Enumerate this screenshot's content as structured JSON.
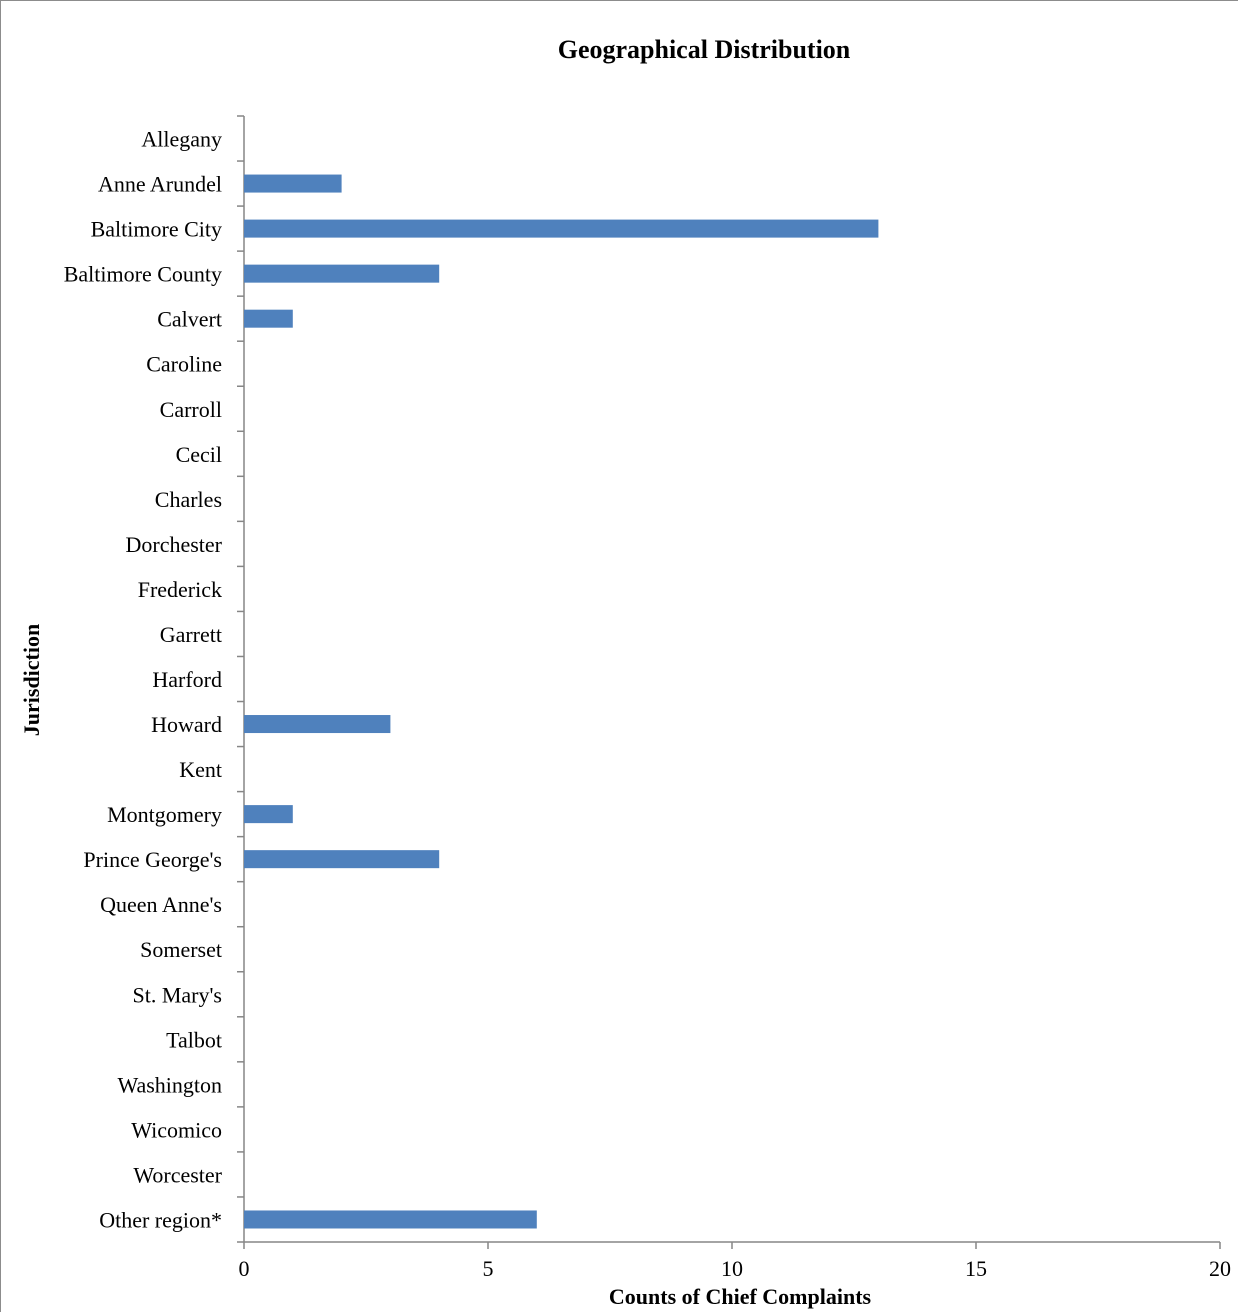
{
  "chart_data": {
    "type": "bar",
    "orientation": "horizontal",
    "title": "Geographical Distribution",
    "xlabel": "Counts of Chief Complaints",
    "ylabel": "Jurisdiction",
    "xlim": [
      0,
      20
    ],
    "xticks": [
      0,
      5,
      10,
      15,
      20
    ],
    "grid": false,
    "legend": "none",
    "bar_color": "#4f81bd",
    "categories": [
      "Allegany",
      "Anne Arundel",
      "Baltimore City",
      "Baltimore County",
      "Calvert",
      "Caroline",
      "Carroll",
      "Cecil",
      "Charles",
      "Dorchester",
      "Frederick",
      "Garrett",
      "Harford",
      "Howard",
      "Kent",
      "Montgomery",
      "Prince George's",
      "Queen Anne's",
      "Somerset",
      "St. Mary's",
      "Talbot",
      "Washington",
      "Wicomico",
      "Worcester",
      "Other region*"
    ],
    "values": [
      0,
      2,
      13,
      4,
      1,
      0,
      0,
      0,
      0,
      0,
      0,
      0,
      0,
      3,
      0,
      1,
      4,
      0,
      0,
      0,
      0,
      0,
      0,
      0,
      6
    ]
  }
}
